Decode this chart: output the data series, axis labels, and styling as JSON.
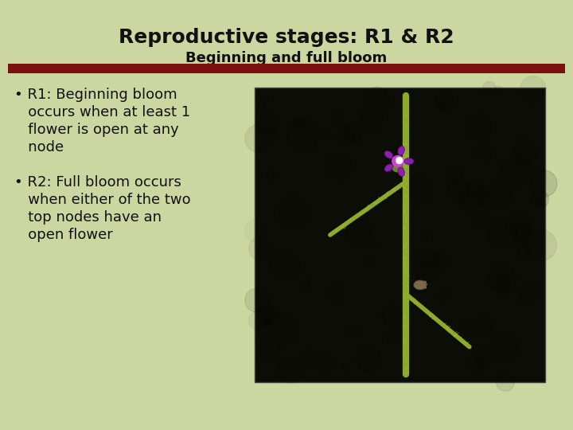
{
  "title": "Reproductive stages: R1 & R2",
  "subtitle": "Beginning and full bloom",
  "bullet1_line1": "• R1: Beginning bloom",
  "bullet1_line2": "   occurs when at least 1",
  "bullet1_line3": "   flower is open at any",
  "bullet1_line4": "   node",
  "bullet2_line1": "• R2: Full bloom occurs",
  "bullet2_line2": "   when either of the two",
  "bullet2_line3": "   top nodes have an",
  "bullet2_line4": "   open flower",
  "bg_color": "#ccd6a0",
  "title_color": "#111111",
  "subtitle_color": "#111111",
  "text_color": "#111111",
  "bar_color": "#7a1010",
  "title_fontsize": 18,
  "subtitle_fontsize": 13,
  "bullet_fontsize": 13
}
